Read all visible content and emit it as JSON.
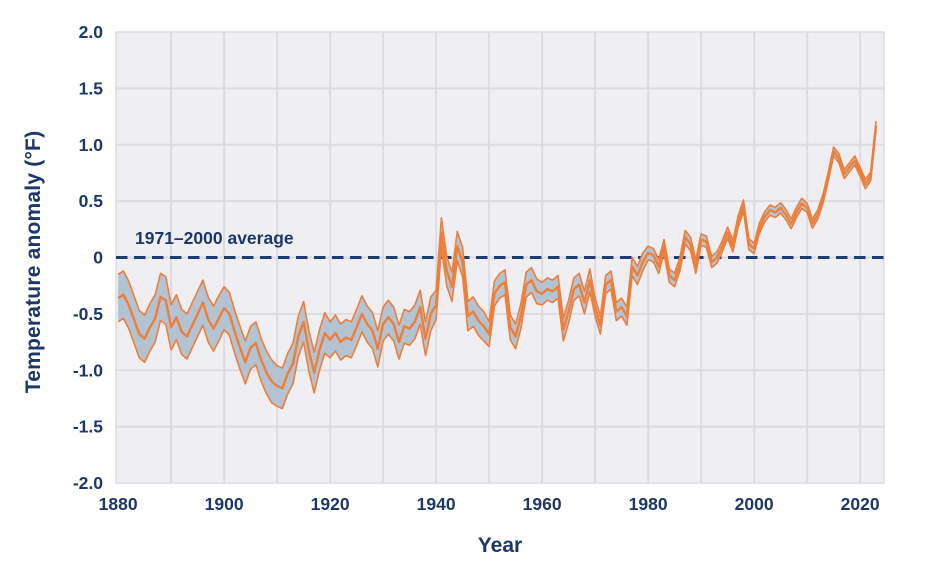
{
  "figure": {
    "y_axis_title": "Temperature anomaly (°F)",
    "x_axis_title": "Year",
    "baseline_label": "1971–2000 average"
  },
  "colors": {
    "background": "#ffffff",
    "panel": "#EFEEF3",
    "grid": "#DCDBE2",
    "text_navy": "#1C3768",
    "baseline_navy": "#1F3B70",
    "line_orange": "#EE7F3B",
    "band_fill": "#B3C3D1"
  },
  "chart_data": {
    "type": "line",
    "title": "",
    "xlabel": "Year",
    "ylabel": "Temperature anomaly (°F)",
    "xlim": [
      1879.6,
      2024.5
    ],
    "ylim": [
      -2.0,
      2.0
    ],
    "grid": true,
    "legend_position": "none",
    "baseline": {
      "value": 0,
      "label": "1971–2000 average"
    },
    "x_ticks": [
      {
        "v": 1880,
        "label": "1880"
      },
      {
        "v": 1900,
        "label": "1900"
      },
      {
        "v": 1920,
        "label": "1920"
      },
      {
        "v": 1940,
        "label": "1940"
      },
      {
        "v": 1960,
        "label": "1960"
      },
      {
        "v": 1980,
        "label": "1980"
      },
      {
        "v": 2000,
        "label": "2000"
      },
      {
        "v": 2020,
        "label": "2020"
      }
    ],
    "y_ticks": [
      {
        "v": 2.0,
        "label": "2.0"
      },
      {
        "v": 1.5,
        "label": "1.5"
      },
      {
        "v": 1.0,
        "label": "1.0"
      },
      {
        "v": 0.5,
        "label": "0.5"
      },
      {
        "v": 0,
        "label": "0"
      },
      {
        "v": -0.5,
        "label": "-0.5"
      },
      {
        "v": -1.0,
        "label": "-1.0"
      },
      {
        "v": -1.5,
        "label": "-1.5"
      },
      {
        "v": -2.0,
        "label": "-2.0"
      }
    ],
    "x_gridlines": [
      1890,
      1900,
      1910,
      1920,
      1930,
      1940,
      1950,
      1960,
      1970,
      1980,
      1990,
      2000,
      2010,
      2020
    ],
    "y_gridlines": [
      -1.5,
      -1.0,
      -0.5,
      0,
      0.5,
      1.0,
      1.5
    ],
    "series": [
      {
        "name": "annual-temperature-anomaly",
        "start_year": 1880,
        "values": [
          -0.36,
          -0.33,
          -0.42,
          -0.55,
          -0.68,
          -0.72,
          -0.62,
          -0.54,
          -0.35,
          -0.38,
          -0.62,
          -0.53,
          -0.66,
          -0.7,
          -0.6,
          -0.5,
          -0.4,
          -0.55,
          -0.63,
          -0.54,
          -0.45,
          -0.5,
          -0.66,
          -0.8,
          -0.93,
          -0.8,
          -0.76,
          -0.91,
          -1.02,
          -1.1,
          -1.14,
          -1.16,
          -1.03,
          -0.94,
          -0.7,
          -0.57,
          -0.83,
          -1.02,
          -0.82,
          -0.67,
          -0.73,
          -0.67,
          -0.75,
          -0.71,
          -0.73,
          -0.62,
          -0.5,
          -0.59,
          -0.65,
          -0.81,
          -0.59,
          -0.53,
          -0.59,
          -0.75,
          -0.61,
          -0.63,
          -0.57,
          -0.44,
          -0.72,
          -0.5,
          -0.42,
          0.22,
          -0.12,
          -0.26,
          0.1,
          -0.04,
          -0.52,
          -0.48,
          -0.56,
          -0.61,
          -0.68,
          -0.32,
          -0.25,
          -0.22,
          -0.62,
          -0.7,
          -0.52,
          -0.24,
          -0.2,
          -0.3,
          -0.32,
          -0.28,
          -0.3,
          -0.26,
          -0.64,
          -0.48,
          -0.28,
          -0.24,
          -0.4,
          -0.2,
          -0.44,
          -0.6,
          -0.24,
          -0.2,
          -0.48,
          -0.44,
          -0.52,
          -0.08,
          -0.16,
          -0.04,
          0.04,
          0.02,
          -0.08,
          0.1,
          -0.16,
          -0.2,
          -0.06,
          0.18,
          0.12,
          -0.08,
          0.16,
          0.14,
          -0.04,
          0.0,
          0.1,
          0.22,
          0.1,
          0.32,
          0.46,
          0.12,
          0.08,
          0.26,
          0.36,
          0.42,
          0.4,
          0.44,
          0.38,
          0.3,
          0.4,
          0.48,
          0.44,
          0.3,
          0.38,
          0.52,
          0.72,
          0.94,
          0.88,
          0.74,
          0.8,
          0.86,
          0.76,
          0.65,
          0.72,
          1.17
        ]
      }
    ],
    "confidence_band": {
      "name": "95-percent-confidence-band",
      "half_width_by_decade": {
        "1880": 0.21,
        "1890": 0.2,
        "1900": 0.19,
        "1910": 0.18,
        "1920": 0.16,
        "1930": 0.15,
        "1940": 0.13,
        "1950": 0.11,
        "1960": 0.1,
        "1970": 0.08,
        "1980": 0.06,
        "1990": 0.05,
        "2000": 0.045,
        "2010": 0.04,
        "2020": 0.04
      }
    }
  }
}
